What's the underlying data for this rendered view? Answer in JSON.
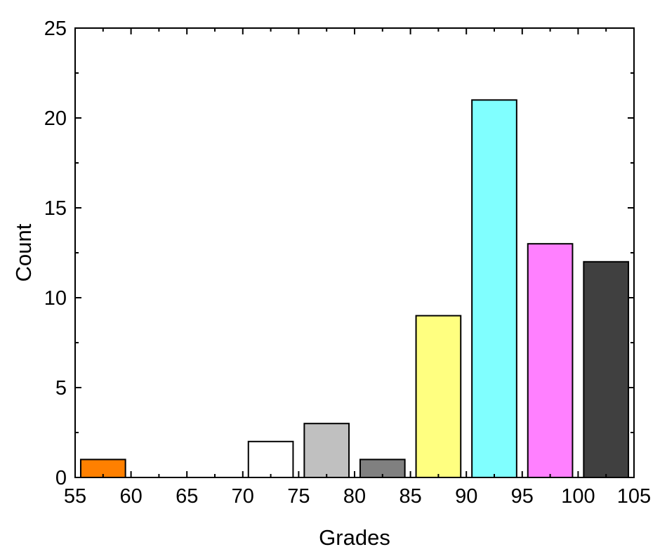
{
  "chart_data": {
    "type": "bar",
    "xlabel": "Grades",
    "ylabel": "Count",
    "xlim": [
      55,
      105
    ],
    "ylim": [
      0,
      25
    ],
    "x_ticks": [
      55,
      60,
      65,
      70,
      75,
      80,
      85,
      90,
      95,
      100,
      105
    ],
    "y_ticks": [
      0,
      5,
      10,
      15,
      20,
      25
    ],
    "bars": [
      {
        "bin_start": 55,
        "bin_end": 60,
        "value": 1,
        "color": "#ff8000"
      },
      {
        "bin_start": 70,
        "bin_end": 75,
        "value": 2,
        "color": "#ffffff"
      },
      {
        "bin_start": 75,
        "bin_end": 80,
        "value": 3,
        "color": "#c0c0c0"
      },
      {
        "bin_start": 80,
        "bin_end": 85,
        "value": 1,
        "color": "#808080"
      },
      {
        "bin_start": 85,
        "bin_end": 90,
        "value": 9,
        "color": "#ffff80"
      },
      {
        "bin_start": 90,
        "bin_end": 95,
        "value": 21,
        "color": "#80ffff"
      },
      {
        "bin_start": 95,
        "bin_end": 100,
        "value": 13,
        "color": "#ff80ff"
      },
      {
        "bin_start": 100,
        "bin_end": 105,
        "value": 12,
        "color": "#404040"
      }
    ],
    "grid": false,
    "legend": "none"
  }
}
